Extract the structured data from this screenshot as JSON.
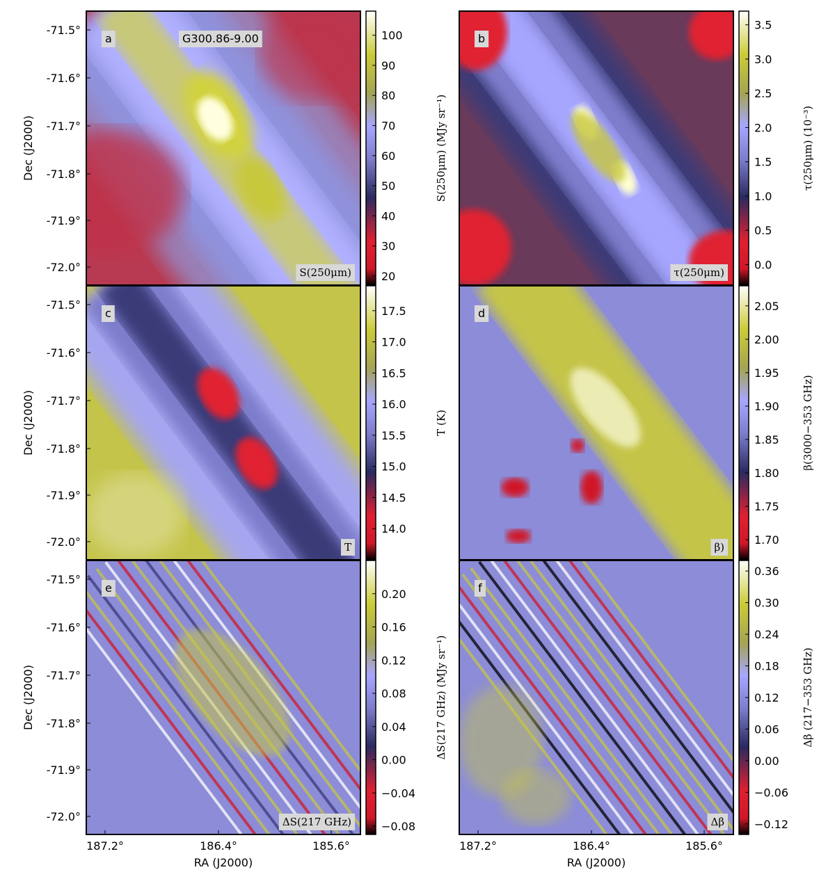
{
  "chart_data": [
    {
      "type": "heatmap",
      "panel_letter": "a",
      "label": "S(250μm)",
      "annotation": "G300.86-9.00",
      "ylabel": "Dec (J2000)",
      "xlabel": "",
      "x_ticks": [],
      "y_ticks": [
        "-71.5°",
        "-71.6°",
        "-71.7°",
        "-71.8°",
        "-71.9°",
        "-72.0°"
      ],
      "colorbar_label": "S(250μm) (MJy sr⁻¹)",
      "colorbar_range": [
        17,
        108
      ],
      "colorbar_ticks": [
        20,
        30,
        40,
        50,
        60,
        70,
        80,
        90,
        100
      ],
      "colormap": "red-blue-yellow-white",
      "cb_tick_decimals": 0
    },
    {
      "type": "heatmap",
      "panel_letter": "b",
      "label": "τ(250μm)",
      "ylabel": "",
      "xlabel": "",
      "x_ticks": [],
      "y_ticks": [],
      "colorbar_label": "τ(250μm) (10⁻³)",
      "colorbar_range": [
        -0.3,
        3.7
      ],
      "colorbar_ticks": [
        0.0,
        0.5,
        1.0,
        1.5,
        2.0,
        2.5,
        3.0,
        3.5
      ],
      "colormap": "red-blue-yellow-white",
      "cb_tick_decimals": 1
    },
    {
      "type": "heatmap",
      "panel_letter": "c",
      "label": "T",
      "ylabel": "Dec (J2000)",
      "xlabel": "",
      "x_ticks": [],
      "y_ticks": [
        "-71.5°",
        "-71.6°",
        "-71.7°",
        "-71.8°",
        "-71.9°",
        "-72.0°"
      ],
      "colorbar_label": "T (K)",
      "colorbar_range": [
        13.5,
        17.9
      ],
      "colorbar_ticks": [
        14.0,
        14.5,
        15.0,
        15.5,
        16.0,
        16.5,
        17.0,
        17.5
      ],
      "colormap": "red-blue-yellow-white",
      "cb_tick_decimals": 1
    },
    {
      "type": "heatmap",
      "panel_letter": "d",
      "label": "β)",
      "ylabel": "",
      "xlabel": "",
      "x_ticks": [],
      "y_ticks": [],
      "colorbar_label": "β(3000−353 GHz)",
      "colorbar_range": [
        1.67,
        2.08
      ],
      "colorbar_ticks": [
        1.7,
        1.75,
        1.8,
        1.85,
        1.9,
        1.95,
        2.0,
        2.05
      ],
      "colormap": "red-blue-yellow-white",
      "cb_tick_decimals": 2
    },
    {
      "type": "heatmap",
      "panel_letter": "e",
      "label": "ΔS(217 GHz)",
      "ylabel": "Dec (J2000)",
      "xlabel": "RA (J2000)",
      "x_ticks": [
        "187.2°",
        "186.4°",
        "185.6°"
      ],
      "y_ticks": [
        "-71.5°",
        "-71.6°",
        "-71.7°",
        "-71.8°",
        "-71.9°",
        "-72.0°"
      ],
      "colorbar_label": "ΔS(217 GHz) (MJy sr⁻¹)",
      "colorbar_range": [
        -0.09,
        0.24
      ],
      "colorbar_ticks": [
        -0.08,
        -0.04,
        0.0,
        0.04,
        0.08,
        0.12,
        0.16,
        0.2
      ],
      "colormap": "red-blue-yellow-white",
      "cb_tick_decimals": 2
    },
    {
      "type": "heatmap",
      "panel_letter": "f",
      "label": "Δβ",
      "ylabel": "",
      "xlabel": "RA (J2000)",
      "x_ticks": [
        "187.2°",
        "186.4°",
        "185.6°"
      ],
      "y_ticks": [],
      "colorbar_label": "Δβ (217−353 GHz)",
      "colorbar_range": [
        -0.14,
        0.38
      ],
      "colorbar_ticks": [
        -0.12,
        -0.06,
        0.0,
        0.06,
        0.12,
        0.18,
        0.24,
        0.3,
        0.36
      ],
      "colormap": "red-blue-yellow-white",
      "cb_tick_decimals": 2
    }
  ],
  "colors": {
    "colormap_stops": [
      "#000000",
      "#d01828",
      "#e02030",
      "#2a2a60",
      "#7d7dcc",
      "#a6a6ff",
      "#a4a454",
      "#cbcb38",
      "#ffffff"
    ],
    "badge_bg": "#d8d8d8",
    "frame": "#000000"
  }
}
